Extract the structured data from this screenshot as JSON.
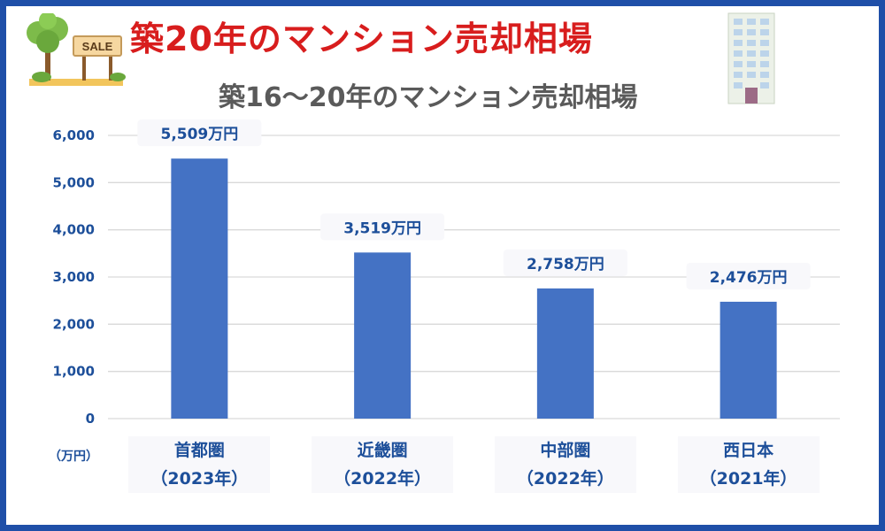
{
  "header": {
    "title": "築20年のマンション売却相場",
    "sale_sign": "SALE"
  },
  "chart_data": {
    "type": "bar",
    "title": "築16〜20年のマンション売却相場",
    "categories": [
      [
        "首都圏",
        "（2023年）"
      ],
      [
        "近畿圏",
        "（2022年）"
      ],
      [
        "中部圏",
        "（2022年）"
      ],
      [
        "西日本",
        "（2021年）"
      ]
    ],
    "values": [
      5509,
      3519,
      2758,
      2476
    ],
    "data_labels": [
      "5,509万円",
      "3,519万円",
      "2,758万円",
      "2,476万円"
    ],
    "ylabel": "（万円）",
    "ylim": [
      0,
      6000
    ],
    "yticks": [
      "0",
      "1,000",
      "2,000",
      "3,000",
      "4,000",
      "5,000",
      "6,000"
    ],
    "grid": true,
    "colors": {
      "bar": "#4472c4",
      "grid": "#d9d9d9",
      "labels": "#1d4f9a"
    }
  }
}
